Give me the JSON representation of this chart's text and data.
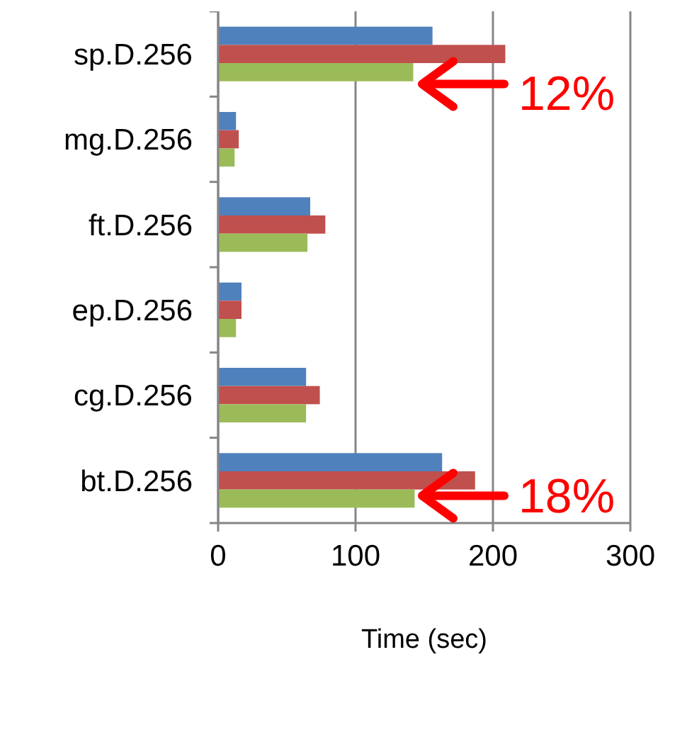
{
  "chart_data": {
    "type": "bar",
    "orientation": "horizontal",
    "xlabel": "Time (sec)",
    "categories": [
      "sp.D.256",
      "mg.D.256",
      "ft.D.256",
      "ep.D.256",
      "cg.D.256",
      "bt.D.256"
    ],
    "series": [
      {
        "color": "#4f81bd",
        "values": [
          156,
          13,
          67,
          17,
          64,
          163
        ]
      },
      {
        "color": "#c0504d",
        "values": [
          209,
          15,
          78,
          17,
          74,
          187
        ]
      },
      {
        "color": "#9bbb59",
        "values": [
          142,
          12,
          65,
          13,
          64,
          143
        ]
      }
    ],
    "xlim": [
      0,
      300
    ],
    "xticks": [
      0,
      100,
      200,
      300
    ],
    "grid": "x",
    "annotations": [
      "12%",
      "18%"
    ]
  }
}
